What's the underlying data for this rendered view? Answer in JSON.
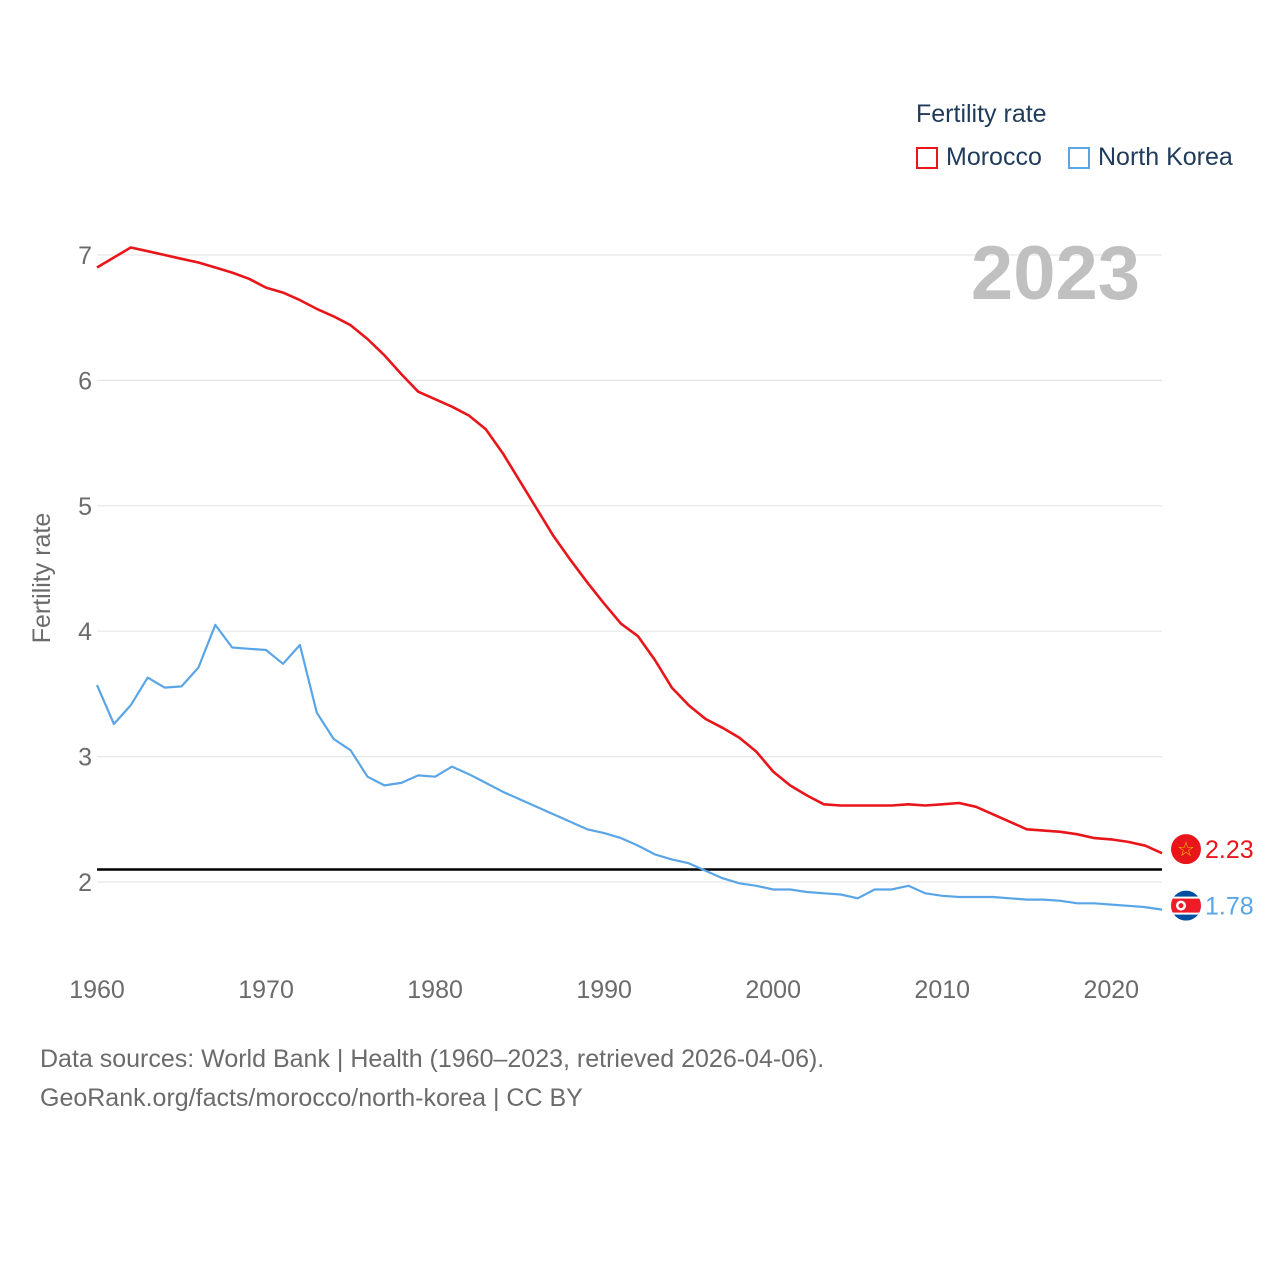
{
  "legend": {
    "title": "Fertility rate",
    "items": [
      {
        "name": "Morocco",
        "color": "#e8161b"
      },
      {
        "name": "North Korea",
        "color": "#5aa5e6"
      }
    ]
  },
  "year_label": "2023",
  "source_line1": "Data sources: World Bank | Health (1960–2023, retrieved 2026-04-06).",
  "source_line2": "GeoRank.org/facts/morocco/north-korea | CC BY",
  "chart_data": {
    "type": "line",
    "title": "Fertility rate",
    "xlabel": "",
    "ylabel": "Fertility rate",
    "xlim": [
      1960,
      2023
    ],
    "ylim": [
      1.4,
      7.2
    ],
    "yticks": [
      2,
      3,
      4,
      5,
      6,
      7
    ],
    "xticks": [
      1960,
      1970,
      1980,
      1990,
      2000,
      2010,
      2020
    ],
    "reference_line": 2.1,
    "x": [
      1960,
      1961,
      1962,
      1963,
      1964,
      1965,
      1966,
      1967,
      1968,
      1969,
      1970,
      1971,
      1972,
      1973,
      1974,
      1975,
      1976,
      1977,
      1978,
      1979,
      1980,
      1981,
      1982,
      1983,
      1984,
      1985,
      1986,
      1987,
      1988,
      1989,
      1990,
      1991,
      1992,
      1993,
      1994,
      1995,
      1996,
      1997,
      1998,
      1999,
      2000,
      2001,
      2002,
      2003,
      2004,
      2005,
      2006,
      2007,
      2008,
      2009,
      2010,
      2011,
      2012,
      2013,
      2014,
      2015,
      2016,
      2017,
      2018,
      2019,
      2020,
      2021,
      2022,
      2023
    ],
    "series": [
      {
        "name": "Morocco",
        "color": "#e8161b",
        "end_label": "2.23",
        "values": [
          6.9,
          6.98,
          7.06,
          7.03,
          7.0,
          6.97,
          6.94,
          6.9,
          6.86,
          6.81,
          6.74,
          6.7,
          6.64,
          6.57,
          6.51,
          6.44,
          6.33,
          6.2,
          6.05,
          5.91,
          5.85,
          5.79,
          5.72,
          5.61,
          5.42,
          5.2,
          4.98,
          4.76,
          4.57,
          4.39,
          4.22,
          4.06,
          3.96,
          3.77,
          3.55,
          3.41,
          3.3,
          3.23,
          3.15,
          3.04,
          2.88,
          2.77,
          2.69,
          2.62,
          2.61,
          2.61,
          2.61,
          2.61,
          2.62,
          2.61,
          2.62,
          2.63,
          2.6,
          2.54,
          2.48,
          2.42,
          2.41,
          2.4,
          2.38,
          2.35,
          2.34,
          2.32,
          2.29,
          2.23
        ]
      },
      {
        "name": "North Korea",
        "color": "#5aa5e6",
        "end_label": "1.78",
        "values": [
          3.57,
          3.26,
          3.41,
          3.63,
          3.55,
          3.56,
          3.71,
          4.05,
          3.87,
          3.86,
          3.85,
          3.74,
          3.89,
          3.35,
          3.14,
          3.05,
          2.84,
          2.77,
          2.79,
          2.85,
          2.84,
          2.92,
          2.86,
          2.79,
          2.72,
          2.66,
          2.6,
          2.54,
          2.48,
          2.42,
          2.39,
          2.35,
          2.29,
          2.22,
          2.18,
          2.15,
          2.09,
          2.03,
          1.99,
          1.97,
          1.94,
          1.94,
          1.92,
          1.91,
          1.9,
          1.87,
          1.94,
          1.94,
          1.97,
          1.91,
          1.89,
          1.88,
          1.88,
          1.88,
          1.87,
          1.86,
          1.86,
          1.85,
          1.83,
          1.83,
          1.82,
          1.81,
          1.8,
          1.78
        ]
      }
    ]
  }
}
